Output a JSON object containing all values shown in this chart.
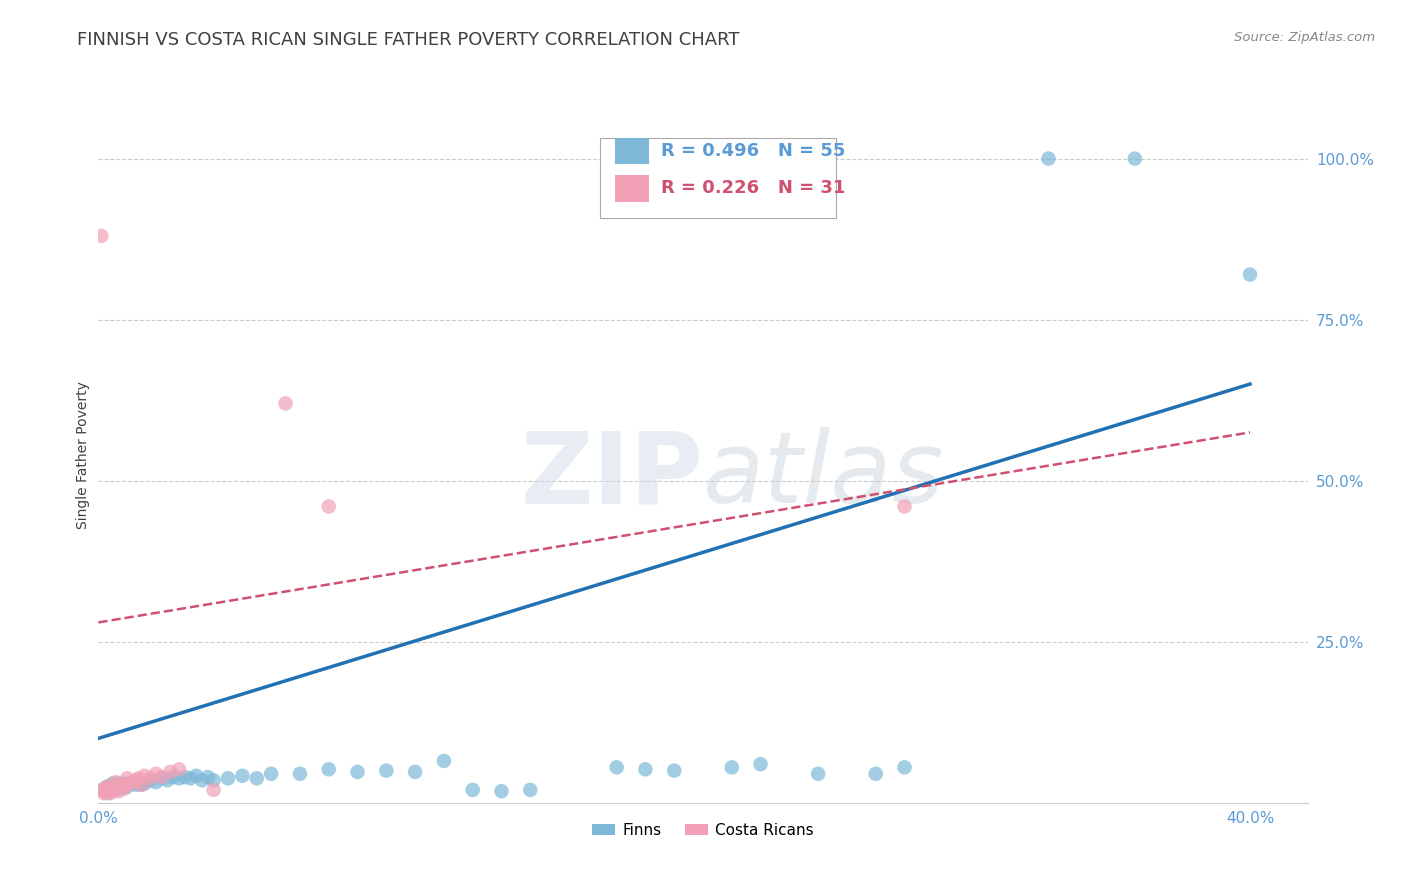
{
  "title": "FINNISH VS COSTA RICAN SINGLE FATHER POVERTY CORRELATION CHART",
  "source": "Source: ZipAtlas.com",
  "ylabel": "Single Father Poverty",
  "ytick_labels": [
    "100.0%",
    "75.0%",
    "50.0%",
    "25.0%"
  ],
  "ytick_values": [
    1.0,
    0.75,
    0.5,
    0.25
  ],
  "xlim": [
    0.0,
    0.42
  ],
  "ylim": [
    0.0,
    1.08
  ],
  "watermark": "ZIPatlas",
  "legend_blue_R": "R = 0.496",
  "legend_blue_N": "N = 55",
  "legend_pink_R": "R = 0.226",
  "legend_pink_N": "N = 31",
  "blue_color": "#7db8d8",
  "pink_color": "#f2a0b5",
  "line_blue_color": "#2171b5",
  "line_pink_color": "#d05070",
  "blue_dots": [
    [
      0.002,
      0.02
    ],
    [
      0.003,
      0.015
    ],
    [
      0.003,
      0.025
    ],
    [
      0.004,
      0.02
    ],
    [
      0.004,
      0.025
    ],
    [
      0.005,
      0.02
    ],
    [
      0.005,
      0.03
    ],
    [
      0.006,
      0.025
    ],
    [
      0.006,
      0.02
    ],
    [
      0.007,
      0.03
    ],
    [
      0.008,
      0.025
    ],
    [
      0.009,
      0.025
    ],
    [
      0.01,
      0.03
    ],
    [
      0.01,
      0.025
    ],
    [
      0.012,
      0.032
    ],
    [
      0.013,
      0.028
    ],
    [
      0.014,
      0.03
    ],
    [
      0.015,
      0.028
    ],
    [
      0.016,
      0.03
    ],
    [
      0.018,
      0.035
    ],
    [
      0.02,
      0.032
    ],
    [
      0.022,
      0.038
    ],
    [
      0.024,
      0.035
    ],
    [
      0.026,
      0.04
    ],
    [
      0.028,
      0.038
    ],
    [
      0.03,
      0.04
    ],
    [
      0.032,
      0.038
    ],
    [
      0.034,
      0.042
    ],
    [
      0.036,
      0.035
    ],
    [
      0.038,
      0.04
    ],
    [
      0.04,
      0.035
    ],
    [
      0.045,
      0.038
    ],
    [
      0.05,
      0.042
    ],
    [
      0.055,
      0.038
    ],
    [
      0.06,
      0.045
    ],
    [
      0.07,
      0.045
    ],
    [
      0.08,
      0.052
    ],
    [
      0.09,
      0.048
    ],
    [
      0.1,
      0.05
    ],
    [
      0.11,
      0.048
    ],
    [
      0.12,
      0.065
    ],
    [
      0.13,
      0.02
    ],
    [
      0.14,
      0.018
    ],
    [
      0.15,
      0.02
    ],
    [
      0.18,
      0.055
    ],
    [
      0.19,
      0.052
    ],
    [
      0.2,
      0.05
    ],
    [
      0.22,
      0.055
    ],
    [
      0.23,
      0.06
    ],
    [
      0.25,
      0.045
    ],
    [
      0.27,
      0.045
    ],
    [
      0.28,
      0.055
    ],
    [
      0.33,
      1.0
    ],
    [
      0.36,
      1.0
    ],
    [
      0.4,
      0.82
    ]
  ],
  "pink_dots": [
    [
      0.001,
      0.02
    ],
    [
      0.002,
      0.015
    ],
    [
      0.002,
      0.02
    ],
    [
      0.003,
      0.02
    ],
    [
      0.003,
      0.025
    ],
    [
      0.004,
      0.022
    ],
    [
      0.004,
      0.015
    ],
    [
      0.005,
      0.022
    ],
    [
      0.005,
      0.018
    ],
    [
      0.006,
      0.032
    ],
    [
      0.007,
      0.028
    ],
    [
      0.007,
      0.018
    ],
    [
      0.008,
      0.028
    ],
    [
      0.009,
      0.022
    ],
    [
      0.01,
      0.038
    ],
    [
      0.01,
      0.028
    ],
    [
      0.012,
      0.032
    ],
    [
      0.013,
      0.035
    ],
    [
      0.014,
      0.038
    ],
    [
      0.015,
      0.028
    ],
    [
      0.016,
      0.042
    ],
    [
      0.018,
      0.038
    ],
    [
      0.02,
      0.045
    ],
    [
      0.022,
      0.04
    ],
    [
      0.025,
      0.048
    ],
    [
      0.028,
      0.052
    ],
    [
      0.001,
      0.88
    ],
    [
      0.065,
      0.62
    ],
    [
      0.08,
      0.46
    ],
    [
      0.28,
      0.46
    ],
    [
      0.04,
      0.02
    ]
  ],
  "blue_line": {
    "x0": 0.0,
    "y0": 0.1,
    "x1": 0.4,
    "y1": 0.65
  },
  "pink_line": {
    "x0": 0.0,
    "y0": 0.28,
    "x1": 0.4,
    "y1": 0.575
  },
  "grid_color": "#cccccc",
  "axis_color": "#5b9bd5",
  "tick_color": "#5b9bd5",
  "background_color": "#ffffff",
  "title_color": "#404040",
  "source_color": "#888888",
  "title_fontsize": 13,
  "axis_label_fontsize": 10,
  "tick_fontsize": 11,
  "legend_fontsize": 13
}
